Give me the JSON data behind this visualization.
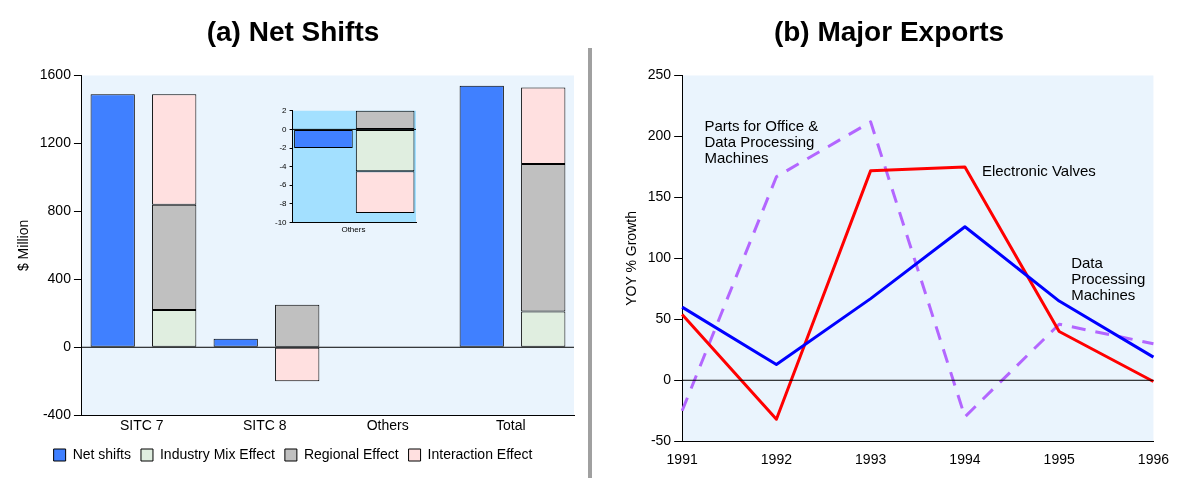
{
  "chart_data": [
    {
      "type": "bar",
      "title": "(a) Net Shifts",
      "ylabel": "$ Million",
      "categories": [
        "SITC 7",
        null,
        "SITC 8",
        null,
        "Others",
        null,
        "Total",
        null
      ],
      "stacked": true,
      "ylim": [
        -400,
        1600
      ],
      "yticks": [
        -400,
        0,
        400,
        800,
        1200,
        1600
      ],
      "grid": false,
      "legend": "bottom",
      "ref_lines": [
        {
          "axis": "y",
          "value": 0,
          "color": "#000000"
        }
      ],
      "series": [
        {
          "name": "Net shifts",
          "color": "#4080ff",
          "values": [
            1490,
            null,
            50,
            null,
            null,
            null,
            1540,
            null
          ]
        },
        {
          "name": "Industry Mix Effect",
          "color": "#e0eee0",
          "values": [
            null,
            220,
            null,
            0,
            null,
            null,
            null,
            210
          ]
        },
        {
          "name": "Regional Effect",
          "color": "#c0c0c0",
          "values": [
            null,
            620,
            null,
            250,
            null,
            null,
            null,
            870
          ]
        },
        {
          "name": "Interaction Effect",
          "color": "#ffe0e0",
          "values": [
            null,
            650,
            null,
            -200,
            null,
            null,
            null,
            450
          ]
        }
      ]
    },
    {
      "type": "bar",
      "categories": [
        "Others",
        null
      ],
      "stacked": true,
      "ylim": [
        -10,
        2
      ],
      "yticks": [
        -10,
        -8,
        -6,
        -4,
        -2,
        0,
        2
      ],
      "grid": false,
      "legend": false,
      "ref_lines": [
        {
          "axis": "y",
          "value": 0,
          "color": "#000000"
        }
      ],
      "series": [
        {
          "color": "#4080ff",
          "values": [
            -2,
            null
          ]
        },
        {
          "color": "#e0eee0",
          "values": [
            null,
            -4.5
          ]
        },
        {
          "color": "#c0c0c0",
          "values": [
            null,
            2
          ]
        },
        {
          "color": "#ffe0e0",
          "values": [
            null,
            -4.5
          ]
        }
      ]
    },
    {
      "type": "line",
      "title": "(b) Major Exports",
      "ylabel": "YOY % Growth",
      "categories": [
        "1991",
        "1992",
        "1993",
        "1994",
        "1995",
        "1996"
      ],
      "ylim": [
        -50,
        250
      ],
      "yticks": [
        -50,
        0,
        50,
        100,
        150,
        200,
        250
      ],
      "grid": false,
      "legend": false,
      "marker": "none",
      "ref_lines": [
        {
          "axis": "y",
          "value": 0,
          "color": "#000000"
        }
      ],
      "series": [
        {
          "name": "Data Processing Machines",
          "color": "#0000ff",
          "line_style": "solid",
          "values": [
            60,
            13,
            67,
            126,
            65,
            19
          ]
        },
        {
          "name": "Electronic Valves",
          "color": "#ff0000",
          "line_style": "solid",
          "values": [
            54,
            -32,
            172,
            175,
            40,
            -1
          ]
        },
        {
          "name": "Parts for Office & Data Processing Machines",
          "color": "#b366ff",
          "line_style": "dashed",
          "values": [
            -25,
            167,
            212,
            -30,
            46,
            30
          ]
        }
      ]
    }
  ]
}
